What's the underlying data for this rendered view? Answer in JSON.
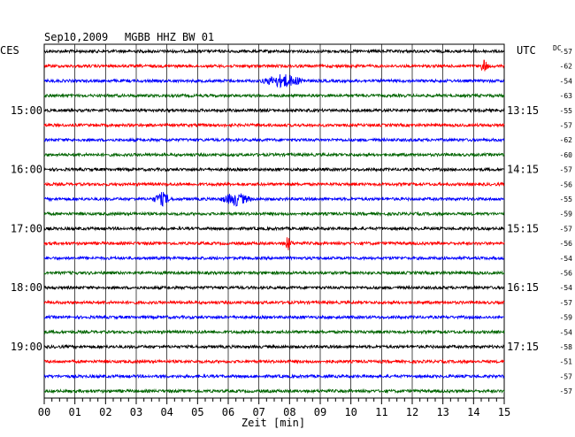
{
  "header": {
    "date": "Sep10,2009",
    "station": "MGBB HHZ BW 01",
    "left_timezone": "CES",
    "right_timezone": "UTC",
    "dc_label": "DC"
  },
  "chart_data": {
    "type": "line",
    "title": "Sep10,2009   MGBB HHZ BW 01",
    "xlabel": "Zeit [min]",
    "x_range": [
      0,
      15
    ],
    "x_tick_labels": [
      "00",
      "01",
      "02",
      "03",
      "04",
      "05",
      "06",
      "07",
      "08",
      "09",
      "10",
      "11",
      "12",
      "13",
      "14",
      "15"
    ],
    "grid": true,
    "trace_colors": [
      "#000000",
      "#ff0000",
      "#0000ff",
      "#006400"
    ],
    "left_hour_labels": [
      {
        "label": "15:00",
        "row": 4
      },
      {
        "label": "16:00",
        "row": 8
      },
      {
        "label": "17:00",
        "row": 12
      },
      {
        "label": "18:00",
        "row": 16
      },
      {
        "label": "19:00",
        "row": 20
      }
    ],
    "right_hour_labels": [
      {
        "label": "13:15",
        "row": 4
      },
      {
        "label": "14:15",
        "row": 8
      },
      {
        "label": "15:15",
        "row": 12
      },
      {
        "label": "16:15",
        "row": 16
      },
      {
        "label": "17:15",
        "row": 20
      }
    ],
    "dc_offsets": [
      "-57",
      "-62",
      "-54",
      "-63",
      "-55",
      "-57",
      "-62",
      "-60",
      "-57",
      "-56",
      "-55",
      "-59",
      "-57",
      "-56",
      "-54",
      "-56",
      "-54",
      "-57",
      "-59",
      "-54",
      "-58",
      "-51",
      "-57",
      "-57"
    ],
    "events": [
      {
        "row": 2,
        "minute_start": 7.0,
        "minute_end": 8.6
      },
      {
        "row": 13,
        "minute_start": 7.8,
        "minute_end": 8.1
      },
      {
        "row": 10,
        "minute_start": 3.5,
        "minute_end": 4.2
      },
      {
        "row": 10,
        "minute_start": 5.7,
        "minute_end": 6.8
      },
      {
        "row": 1,
        "minute_start": 14.2,
        "minute_end": 14.5
      }
    ]
  }
}
